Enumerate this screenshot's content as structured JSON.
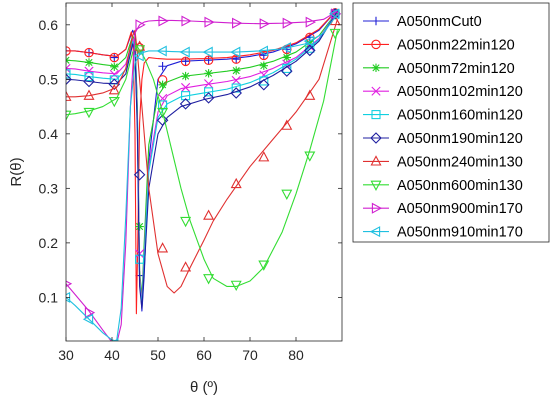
{
  "chart_data": {
    "type": "line",
    "xlabel": "θ (º)",
    "ylabel": "R(θ)",
    "xlim": [
      30,
      90
    ],
    "ylim": [
      0.02,
      0.64
    ],
    "xticks": [
      30,
      40,
      50,
      60,
      70,
      80
    ],
    "yticks": [
      0.1,
      0.2,
      0.3,
      0.4,
      0.5,
      0.6
    ],
    "grid": false,
    "legend_position": "right",
    "series": [
      {
        "name": "A050nmCut0",
        "color": "#1f1fd6",
        "marker": "plus",
        "x": [
          30,
          32,
          35,
          38,
          41,
          43,
          44.5,
          45,
          45.5,
          46,
          46.5,
          47,
          48,
          50,
          52,
          55,
          60,
          65,
          70,
          75,
          80,
          85,
          89
        ],
        "y": [
          0.552,
          0.552,
          0.549,
          0.545,
          0.542,
          0.555,
          0.59,
          0.58,
          0.45,
          0.14,
          0.075,
          0.14,
          0.35,
          0.5,
          0.525,
          0.533,
          0.535,
          0.537,
          0.542,
          0.55,
          0.565,
          0.59,
          0.628
        ],
        "marker_x": [
          30,
          35,
          40.5,
          46,
          51,
          56,
          61,
          67,
          73,
          78,
          83,
          88.5
        ],
        "marker_y": [
          0.552,
          0.549,
          0.54,
          0.14,
          0.524,
          0.533,
          0.535,
          0.537,
          0.544,
          0.555,
          0.577,
          0.622
        ]
      },
      {
        "name": "A050nm22min120",
        "color": "#ff2020",
        "marker": "circle",
        "x": [
          30,
          32,
          35,
          38,
          41,
          43,
          44.2,
          44.6,
          45,
          45.3,
          45.6,
          46,
          46.5,
          47,
          48,
          50,
          52,
          55,
          60,
          65,
          70,
          75,
          80,
          85,
          89
        ],
        "y": [
          0.552,
          0.552,
          0.549,
          0.545,
          0.542,
          0.555,
          0.587,
          0.56,
          0.4,
          0.07,
          0.2,
          0.42,
          0.5,
          0.53,
          0.54,
          0.538,
          0.537,
          0.537,
          0.538,
          0.54,
          0.545,
          0.553,
          0.567,
          0.592,
          0.628
        ],
        "marker_x": [
          30,
          35,
          40.5,
          46,
          51,
          56,
          61,
          67,
          73,
          78,
          83,
          88.5
        ],
        "marker_y": [
          0.552,
          0.549,
          0.54,
          0.558,
          0.499,
          0.533,
          0.535,
          0.537,
          0.544,
          0.555,
          0.577,
          0.622
        ]
      },
      {
        "name": "A050nm72min120",
        "color": "#22cc22",
        "marker": "asterisk",
        "x": [
          30,
          32,
          35,
          38,
          41,
          43,
          44.5,
          45,
          45.5,
          46,
          46.5,
          47,
          48,
          50,
          52,
          55,
          60,
          65,
          70,
          75,
          80,
          85,
          89
        ],
        "y": [
          0.535,
          0.534,
          0.531,
          0.527,
          0.524,
          0.54,
          0.58,
          0.57,
          0.45,
          0.15,
          0.1,
          0.2,
          0.38,
          0.47,
          0.495,
          0.505,
          0.51,
          0.515,
          0.522,
          0.533,
          0.55,
          0.58,
          0.625
        ],
        "marker_x": [
          30,
          35,
          40.5,
          46,
          51,
          56,
          61,
          67,
          73,
          78,
          83,
          88.5
        ],
        "marker_y": [
          0.535,
          0.531,
          0.523,
          0.23,
          0.49,
          0.506,
          0.511,
          0.516,
          0.525,
          0.54,
          0.565,
          0.62
        ]
      },
      {
        "name": "A050nm102min120",
        "color": "#e020e0",
        "marker": "x",
        "x": [
          30,
          32,
          35,
          38,
          41,
          43,
          44.5,
          45,
          45.5,
          46,
          46.5,
          47,
          48,
          50,
          52,
          55,
          60,
          65,
          70,
          75,
          80,
          85,
          89
        ],
        "y": [
          0.52,
          0.519,
          0.515,
          0.512,
          0.51,
          0.528,
          0.575,
          0.56,
          0.43,
          0.14,
          0.09,
          0.18,
          0.34,
          0.44,
          0.47,
          0.483,
          0.49,
          0.496,
          0.505,
          0.52,
          0.54,
          0.575,
          0.625
        ],
        "marker_x": [
          30,
          35,
          40.5,
          46,
          51,
          56,
          61,
          67,
          73,
          78,
          83,
          88.5
        ],
        "marker_y": [
          0.52,
          0.515,
          0.509,
          0.18,
          0.465,
          0.485,
          0.492,
          0.498,
          0.508,
          0.528,
          0.56,
          0.62
        ]
      },
      {
        "name": "A050nm160min120",
        "color": "#10d0e0",
        "marker": "square",
        "x": [
          30,
          32,
          35,
          38,
          41,
          43,
          44.5,
          45,
          45.5,
          46,
          46.5,
          47,
          48,
          50,
          52,
          55,
          60,
          65,
          70,
          75,
          80,
          85,
          89
        ],
        "y": [
          0.51,
          0.509,
          0.505,
          0.502,
          0.5,
          0.518,
          0.57,
          0.555,
          0.42,
          0.13,
          0.085,
          0.17,
          0.33,
          0.43,
          0.455,
          0.468,
          0.475,
          0.482,
          0.494,
          0.512,
          0.537,
          0.573,
          0.625
        ],
        "marker_x": [
          30,
          35,
          40.5,
          46,
          51,
          56,
          61,
          67,
          73,
          78,
          83,
          88.5
        ],
        "marker_y": [
          0.51,
          0.505,
          0.499,
          0.17,
          0.453,
          0.47,
          0.477,
          0.484,
          0.497,
          0.52,
          0.557,
          0.62
        ]
      },
      {
        "name": "A050nm190min120",
        "color": "#1f1fa0",
        "marker": "diamond",
        "x": [
          30,
          32,
          35,
          38,
          41,
          43,
          44.5,
          45,
          45.5,
          46,
          46.5,
          47,
          48,
          50,
          52,
          55,
          60,
          65,
          70,
          75,
          80,
          85,
          89
        ],
        "y": [
          0.5,
          0.499,
          0.496,
          0.493,
          0.492,
          0.51,
          0.565,
          0.55,
          0.41,
          0.12,
          0.08,
          0.15,
          0.3,
          0.4,
          0.43,
          0.45,
          0.463,
          0.472,
          0.486,
          0.507,
          0.533,
          0.57,
          0.625
        ],
        "marker_x": [
          30,
          35,
          40.5,
          46,
          51,
          56,
          61,
          67,
          73,
          78,
          83,
          88.5
        ],
        "marker_y": [
          0.5,
          0.496,
          0.491,
          0.325,
          0.425,
          0.455,
          0.466,
          0.475,
          0.49,
          0.515,
          0.553,
          0.62
        ]
      },
      {
        "name": "A050nm240min130",
        "color": "#e03030",
        "marker": "triangle-up",
        "x": [
          30,
          32,
          35,
          38,
          41,
          43,
          44.5,
          45,
          45.5,
          46,
          47,
          48,
          50,
          52,
          53.5,
          55,
          57,
          60,
          62,
          65,
          70,
          75,
          80,
          85,
          89
        ],
        "y": [
          0.468,
          0.468,
          0.47,
          0.475,
          0.485,
          0.52,
          0.58,
          0.59,
          0.55,
          0.5,
          0.4,
          0.3,
          0.18,
          0.12,
          0.108,
          0.12,
          0.155,
          0.205,
          0.24,
          0.28,
          0.34,
          0.39,
          0.44,
          0.5,
          0.61
        ],
        "marker_x": [
          30,
          35,
          40.5,
          46,
          51,
          56,
          61,
          67,
          73,
          78,
          83,
          88.5
        ],
        "marker_y": [
          0.468,
          0.47,
          0.48,
          0.56,
          0.19,
          0.155,
          0.25,
          0.308,
          0.357,
          0.415,
          0.47,
          0.607
        ]
      },
      {
        "name": "A050nm600min130",
        "color": "#33dd33",
        "marker": "triangle-down",
        "x": [
          30,
          32,
          35,
          38,
          41,
          43,
          44.5,
          45.5,
          47,
          49,
          51,
          53,
          55,
          57,
          60,
          62,
          65,
          67,
          70,
          73,
          77,
          80,
          83,
          86,
          89
        ],
        "y": [
          0.435,
          0.437,
          0.442,
          0.45,
          0.465,
          0.5,
          0.55,
          0.56,
          0.54,
          0.5,
          0.44,
          0.37,
          0.3,
          0.24,
          0.17,
          0.135,
          0.12,
          0.12,
          0.13,
          0.155,
          0.22,
          0.29,
          0.37,
          0.46,
          0.59
        ],
        "marker_x": [
          30,
          35,
          40.5,
          46,
          51,
          56,
          61,
          67,
          73,
          78,
          83,
          88.5
        ],
        "marker_y": [
          0.435,
          0.44,
          0.46,
          0.555,
          0.44,
          0.24,
          0.135,
          0.123,
          0.16,
          0.29,
          0.36,
          0.585
        ]
      },
      {
        "name": "A050nm900min170",
        "color": "#d020d0",
        "marker": "triangle-right",
        "x": [
          30,
          32,
          35,
          38,
          40,
          41,
          42,
          43,
          44,
          45,
          46,
          47,
          48,
          50,
          53,
          57,
          62,
          67,
          72,
          77,
          82,
          86,
          89
        ],
        "y": [
          0.125,
          0.105,
          0.075,
          0.04,
          0.018,
          0.015,
          0.05,
          0.2,
          0.45,
          0.585,
          0.6,
          0.605,
          0.607,
          0.608,
          0.608,
          0.607,
          0.605,
          0.603,
          0.602,
          0.603,
          0.605,
          0.61,
          0.625
        ],
        "marker_x": [
          30,
          35,
          40.5,
          46,
          51,
          56,
          61,
          67,
          73,
          78,
          83,
          88.5
        ],
        "marker_y": [
          0.125,
          0.072,
          0.005,
          0.6,
          0.607,
          0.607,
          0.605,
          0.603,
          0.602,
          0.603,
          0.605,
          0.62
        ]
      },
      {
        "name": "A050nm910min170",
        "color": "#20c0e0",
        "marker": "triangle-left",
        "x": [
          30,
          32,
          35,
          38,
          40,
          41,
          42,
          43,
          44,
          45,
          46,
          47,
          48,
          50,
          53,
          57,
          62,
          67,
          72,
          77,
          82,
          86,
          89
        ],
        "y": [
          0.1,
          0.085,
          0.06,
          0.035,
          0.022,
          0.02,
          0.08,
          0.25,
          0.45,
          0.53,
          0.545,
          0.55,
          0.552,
          0.552,
          0.551,
          0.55,
          0.55,
          0.55,
          0.552,
          0.556,
          0.565,
          0.585,
          0.62
        ],
        "marker_x": [
          30,
          35,
          40.5,
          46,
          51,
          56,
          61,
          67,
          73,
          78,
          83,
          88.5
        ],
        "marker_y": [
          0.1,
          0.06,
          0.015,
          0.543,
          0.552,
          0.55,
          0.55,
          0.55,
          0.552,
          0.558,
          0.57,
          0.62
        ]
      }
    ]
  }
}
